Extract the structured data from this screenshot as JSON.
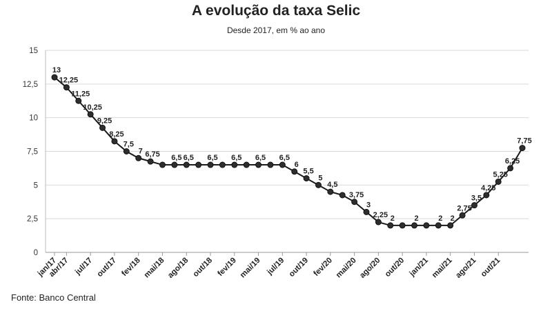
{
  "chart_data": {
    "type": "line",
    "title": "A evolução da taxa Selic",
    "subtitle": "Desde 2017, em % ao ano",
    "source": "Fonte: Banco Central",
    "ylim": [
      0,
      15
    ],
    "yticks": [
      "0",
      "2,5",
      "5",
      "7,5",
      "10",
      "12,5",
      "15"
    ],
    "grid": true,
    "xticks": [
      {
        "label": "jan/17",
        "index": 0
      },
      {
        "label": "abr/17",
        "index": 1
      },
      {
        "label": "jul/17",
        "index": 3
      },
      {
        "label": "out/17",
        "index": 5
      },
      {
        "label": "fev/18",
        "index": 7
      },
      {
        "label": "mai/18",
        "index": 9
      },
      {
        "label": "ago/18",
        "index": 11
      },
      {
        "label": "out/18",
        "index": 13
      },
      {
        "label": "fev/19",
        "index": 15
      },
      {
        "label": "mai/19",
        "index": 17
      },
      {
        "label": "jul/19",
        "index": 19
      },
      {
        "label": "out/19",
        "index": 21
      },
      {
        "label": "fev/20",
        "index": 23
      },
      {
        "label": "mai/20",
        "index": 25
      },
      {
        "label": "ago/20",
        "index": 27
      },
      {
        "label": "out/20",
        "index": 29
      },
      {
        "label": "jan/21",
        "index": 31
      },
      {
        "label": "mai/21",
        "index": 33
      },
      {
        "label": "ago/21",
        "index": 35
      },
      {
        "label": "out/21",
        "index": 37
      }
    ],
    "values": [
      13,
      12.25,
      11.25,
      10.25,
      9.25,
      8.25,
      7.5,
      7,
      6.75,
      6.5,
      6.5,
      6.5,
      6.5,
      6.5,
      6.5,
      6.5,
      6.5,
      6.5,
      6.5,
      6.5,
      6,
      5.5,
      5,
      4.5,
      4.25,
      3.75,
      3,
      2.25,
      2,
      2,
      2,
      2,
      2,
      2,
      2.75,
      3.5,
      4.25,
      5.25,
      6.25,
      7.75
    ],
    "data_labels": [
      "13",
      "12,25",
      "11,25",
      "10,25",
      "9,25",
      "8,25",
      "7,5",
      "7",
      "6,75",
      "",
      "6,5",
      "6,5",
      "",
      "6,5",
      "",
      "6,5",
      "",
      "6,5",
      "",
      "6,5",
      "6",
      "5,5",
      "5",
      "4,5",
      "",
      "3,75",
      "3",
      "2,25",
      "2",
      "",
      "2",
      "",
      "2",
      "2",
      "2,75",
      "3,5",
      "4,25",
      "5,25",
      "6,25",
      "7,75"
    ],
    "line_color": "#1a1a1a",
    "marker_color": "#2e2e2e",
    "grid_color": "#d9d9d9"
  }
}
